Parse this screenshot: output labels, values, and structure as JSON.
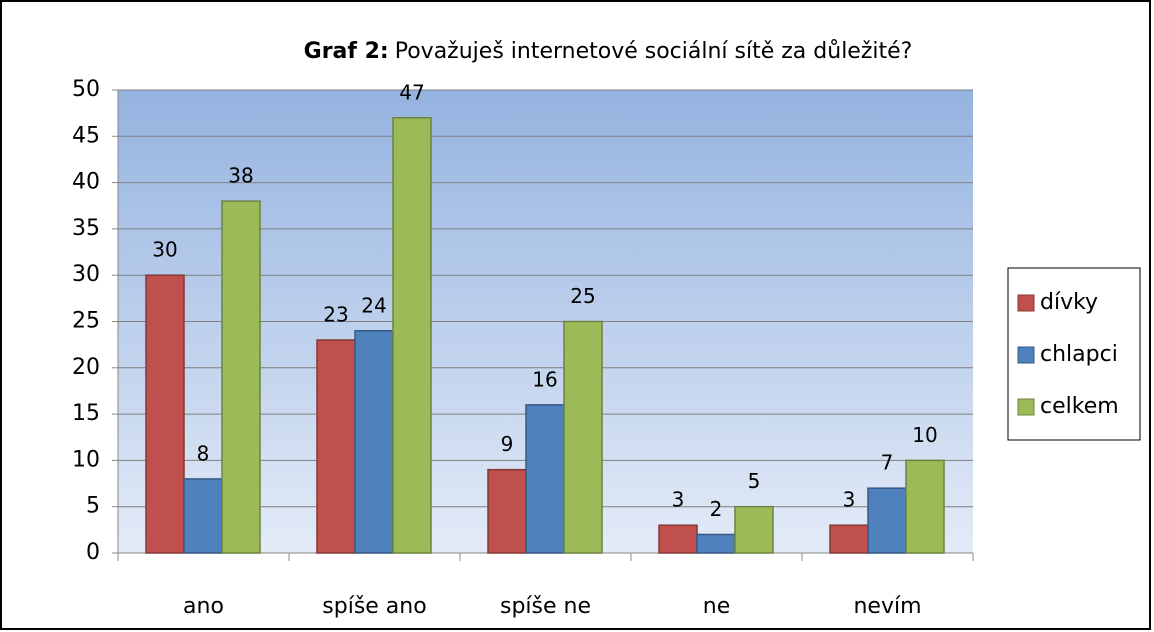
{
  "chart_data": {
    "type": "bar",
    "title": {
      "label": "Graf 2:",
      "text": "Považuješ internetové sociální  sítě za důležité?"
    },
    "categories": [
      "ano",
      "spíše ano",
      "spíše ne",
      "ne",
      "nevím"
    ],
    "series": [
      {
        "name": "dívky",
        "color": "#c0504d",
        "values": [
          30,
          23,
          9,
          3,
          3
        ]
      },
      {
        "name": "chlapci",
        "color": "#4f81bd",
        "values": [
          8,
          24,
          16,
          2,
          7
        ]
      },
      {
        "name": "celkem",
        "color": "#9bbb59",
        "values": [
          38,
          47,
          25,
          5,
          10
        ]
      }
    ],
    "ylim": [
      0,
      50
    ],
    "yticks": [
      0,
      5,
      10,
      15,
      20,
      25,
      30,
      35,
      40,
      45,
      50
    ],
    "grid": true,
    "legend": "right"
  }
}
